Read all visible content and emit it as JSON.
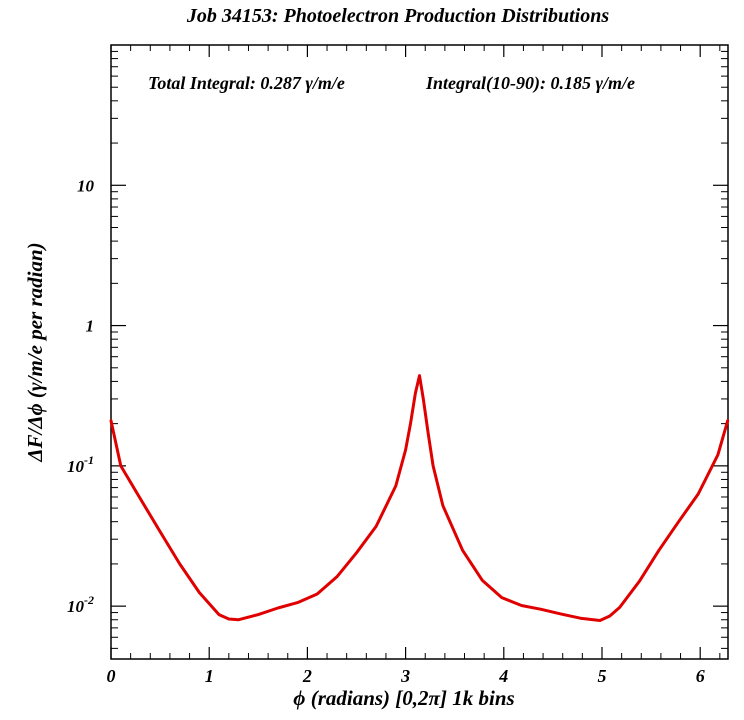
{
  "chart_data": {
    "type": "line",
    "title": "Job 34153: Photoelectron Production Distributions",
    "xlabel": "ϕ (radians) [0,2π] 1k bins",
    "ylabel": "ΔF/Δϕ (γ/m/e per radian)",
    "annotations": [
      "Total Integral: 0.287 γ/m/e",
      "Integral(10-90): 0.185 γ/m/e"
    ],
    "xlim": [
      0,
      6.2832
    ],
    "ylim": [
      0.0042,
      100
    ],
    "yscale": "log",
    "x_ticks": [
      "0",
      "1",
      "2",
      "3",
      "4",
      "5",
      "6"
    ],
    "y_ticks": [
      {
        "base": "10",
        "exp": "-2"
      },
      {
        "base": "10",
        "exp": "-1"
      },
      {
        "base": "1",
        "exp": ""
      },
      {
        "base": "10",
        "exp": ""
      }
    ],
    "grid": false,
    "line_color": "#e00000",
    "series": [
      {
        "x": [
          0,
          0.1,
          0.3,
          0.5,
          0.7,
          0.9,
          1.1,
          1.2,
          1.3,
          1.5,
          1.7,
          1.9,
          2.1,
          2.3,
          2.5,
          2.7,
          2.9,
          3.0,
          3.05,
          3.1,
          3.14159,
          3.18,
          3.23,
          3.28,
          3.38,
          3.58,
          3.78,
          3.98,
          4.18,
          4.38,
          4.58,
          4.78,
          4.98,
          5.08,
          5.18,
          5.38,
          5.58,
          5.78,
          5.98,
          6.18,
          6.28
        ],
        "values": [
          0.21,
          0.1,
          0.058,
          0.034,
          0.02,
          0.0125,
          0.0087,
          0.0081,
          0.008,
          0.0087,
          0.0097,
          0.0106,
          0.0122,
          0.0162,
          0.024,
          0.037,
          0.072,
          0.13,
          0.2,
          0.33,
          0.44,
          0.3,
          0.17,
          0.1,
          0.052,
          0.025,
          0.0153,
          0.0115,
          0.0101,
          0.0095,
          0.0088,
          0.0082,
          0.0079,
          0.0085,
          0.0098,
          0.015,
          0.025,
          0.04,
          0.063,
          0.12,
          0.21
        ]
      }
    ]
  }
}
